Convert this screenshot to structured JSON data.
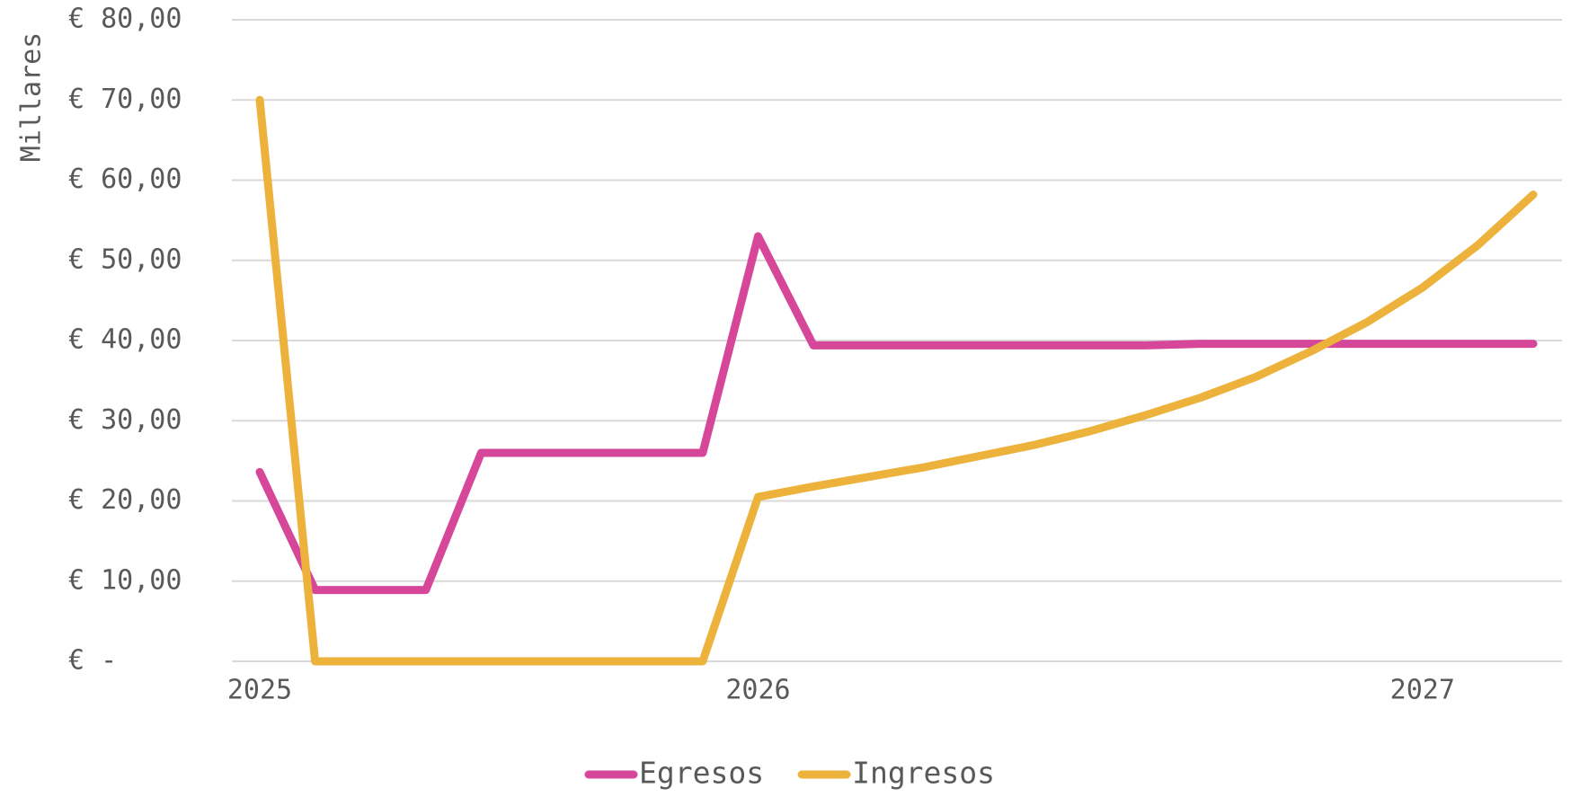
{
  "chart_data": {
    "type": "line",
    "y_label": "Millares",
    "categories": [
      "2025",
      null,
      null,
      null,
      null,
      null,
      null,
      null,
      null,
      "2026",
      null,
      null,
      null,
      null,
      null,
      null,
      null,
      null,
      null,
      null,
      null,
      "2027",
      null,
      null
    ],
    "series": [
      {
        "name": "Egresos",
        "color": "#d6479a",
        "values": [
          23.6,
          8.9,
          8.9,
          8.9,
          26,
          26,
          26,
          26,
          26,
          53,
          39.4,
          39.4,
          39.4,
          39.4,
          39.4,
          39.4,
          39.4,
          39.6,
          39.6,
          39.6,
          39.6,
          39.6,
          39.6,
          39.6
        ]
      },
      {
        "name": "Ingresos",
        "color": "#ecb23b",
        "values": [
          70,
          0,
          0,
          0,
          0,
          0,
          0,
          0,
          0,
          20.5,
          21.8,
          23,
          24.2,
          25.6,
          27,
          28.7,
          30.7,
          32.9,
          35.5,
          38.7,
          42.3,
          46.6,
          51.9,
          58.2
        ]
      }
    ],
    "ylim": [
      0,
      80
    ],
    "yticks": [
      {
        "value": 0,
        "label": "€ -"
      },
      {
        "value": 10,
        "label": "€ 10,00"
      },
      {
        "value": 20,
        "label": "€ 20,00"
      },
      {
        "value": 30,
        "label": "€ 30,00"
      },
      {
        "value": 40,
        "label": "€ 40,00"
      },
      {
        "value": 50,
        "label": "€ 50,00"
      },
      {
        "value": 60,
        "label": "€ 60,00"
      },
      {
        "value": 70,
        "label": "€ 70,00"
      },
      {
        "value": 80,
        "label": "€ 80,00"
      }
    ],
    "grid": true,
    "legend": "bottom"
  }
}
